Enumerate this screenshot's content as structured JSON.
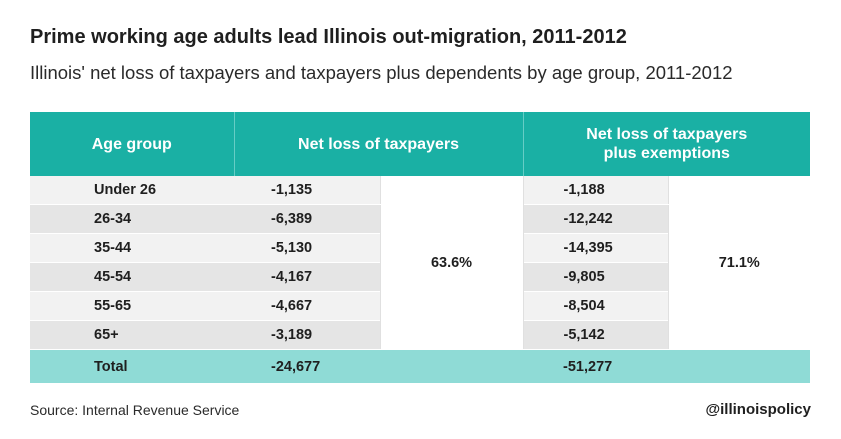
{
  "title": "Prime working age adults lead Illinois out-migration, 2011-2012",
  "subtitle": "Illinois' net loss of taxpayers and taxpayers plus dependents by age group, 2011-2012",
  "source": "Source: Internal Revenue Service",
  "handle": "@illinoispolicy",
  "colors": {
    "header": "#1ab0a4",
    "total_row": "#8fdbd6",
    "row_light": "#f2f2f2",
    "row_dark": "#e5e5e5"
  },
  "chart_data": {
    "type": "table",
    "headers": [
      "Age group",
      "Net loss of taxpayers",
      "Net loss of taxpayers plus exemptions"
    ],
    "rows": [
      {
        "age": "Under 26",
        "taxpayers": "-1,135",
        "exemptions": "-1,188"
      },
      {
        "age": "26-34",
        "taxpayers": "-6,389",
        "exemptions": "-12,242"
      },
      {
        "age": "35-44",
        "taxpayers": "-5,130",
        "exemptions": "-14,395"
      },
      {
        "age": "45-54",
        "taxpayers": "-4,167",
        "exemptions": "-9,805"
      },
      {
        "age": "55-65",
        "taxpayers": "-4,667",
        "exemptions": "-8,504"
      },
      {
        "age": "65+",
        "taxpayers": "-3,189",
        "exemptions": "-5,142"
      }
    ],
    "share_taxpayers": "63.6%",
    "share_exemptions": "71.1%",
    "total": {
      "label": "Total",
      "taxpayers": "-24,677",
      "exemptions": "-51,277"
    }
  }
}
